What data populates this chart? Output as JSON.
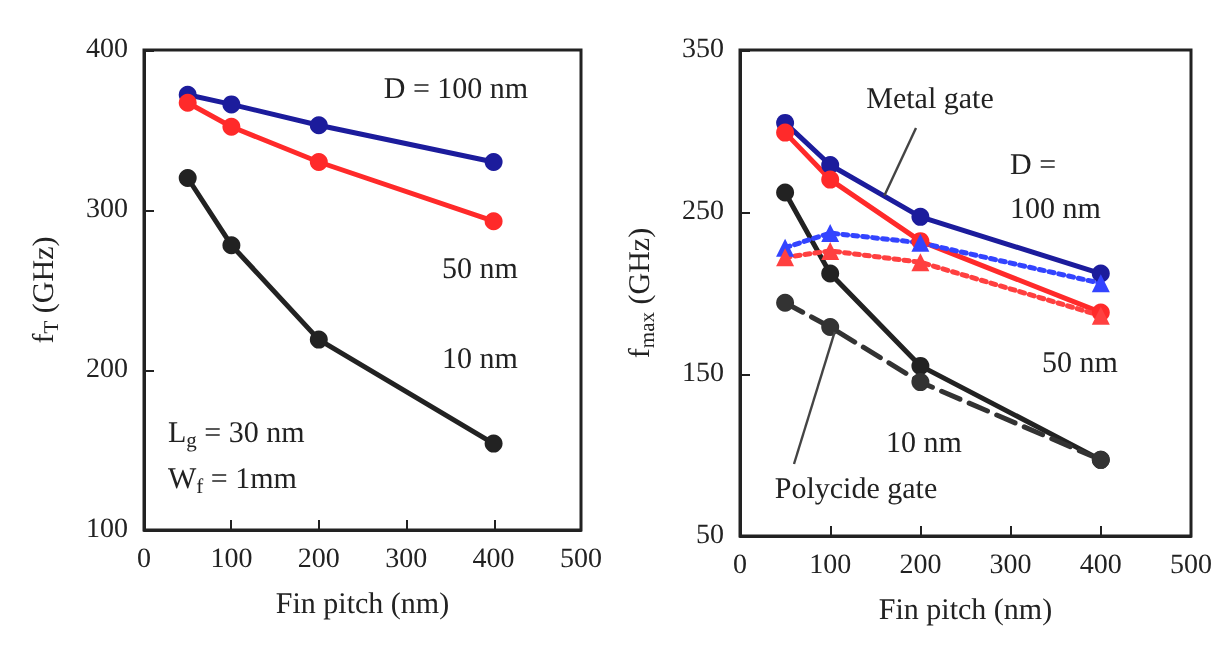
{
  "chart_data": [
    {
      "type": "line",
      "xlabel": "Fin pitch (nm)",
      "ylabel": "f$_{T}$ (GHz)",
      "x": [
        50,
        100,
        200,
        400
      ],
      "xlim": [
        0,
        500
      ],
      "xticks": [
        0,
        100,
        200,
        300,
        400,
        500
      ],
      "ylim": [
        100,
        400
      ],
      "yticks": [
        100,
        200,
        300,
        400
      ],
      "marker": "circle",
      "line_style": "solid",
      "series": [
        {
          "color": "#1c1c9c",
          "values": [
            372,
            366,
            353,
            330
          ]
        },
        {
          "color": "#ff2a2a",
          "values": [
            367,
            352,
            330,
            293
          ]
        },
        {
          "color": "#222222",
          "values": [
            320,
            278,
            219,
            154
          ]
        }
      ],
      "annotations": [
        "D = 100 nm",
        "50 nm",
        "10 nm",
        "L$_{g}$ = 30 nm",
        "W$_{f}$ = 1mm"
      ]
    },
    {
      "type": "line",
      "xlabel": "Fin pitch (nm)",
      "ylabel": "f$_{max}$ (GHz)",
      "x": [
        50,
        100,
        200,
        400
      ],
      "xlim": [
        0,
        500
      ],
      "xticks": [
        0,
        100,
        200,
        300,
        400,
        500
      ],
      "ylim": [
        50,
        350
      ],
      "yticks": [
        50,
        150,
        250,
        350
      ],
      "series": [
        {
          "color": "#1c1c9c",
          "values": [
            305,
            279,
            247,
            212
          ],
          "marker": "circle",
          "line_style": "solid"
        },
        {
          "color": "#ff2a2a",
          "values": [
            299,
            270,
            232,
            188
          ],
          "marker": "circle",
          "line_style": "solid"
        },
        {
          "color": "#222222",
          "values": [
            262,
            212,
            155,
            97
          ],
          "marker": "circle",
          "line_style": "solid"
        },
        {
          "color": "#3344ff",
          "values": [
            228,
            237,
            231,
            206
          ],
          "marker": "triangle",
          "line_style": "dotted"
        },
        {
          "color": "#ff4040",
          "values": [
            222,
            226,
            219,
            186
          ],
          "marker": "triangle",
          "line_style": "dotted"
        },
        {
          "color": "#333333",
          "values": [
            194,
            179,
            145,
            97
          ],
          "marker": "circle",
          "line_style": "dashed"
        }
      ],
      "annotations": [
        {
          "text": "Metal gate",
          "x": 160,
          "y": 260
        },
        "D = 100 nm",
        "50 nm",
        "10 nm",
        {
          "text": "Polycide gate",
          "x": 105,
          "y": 176
        }
      ]
    }
  ]
}
